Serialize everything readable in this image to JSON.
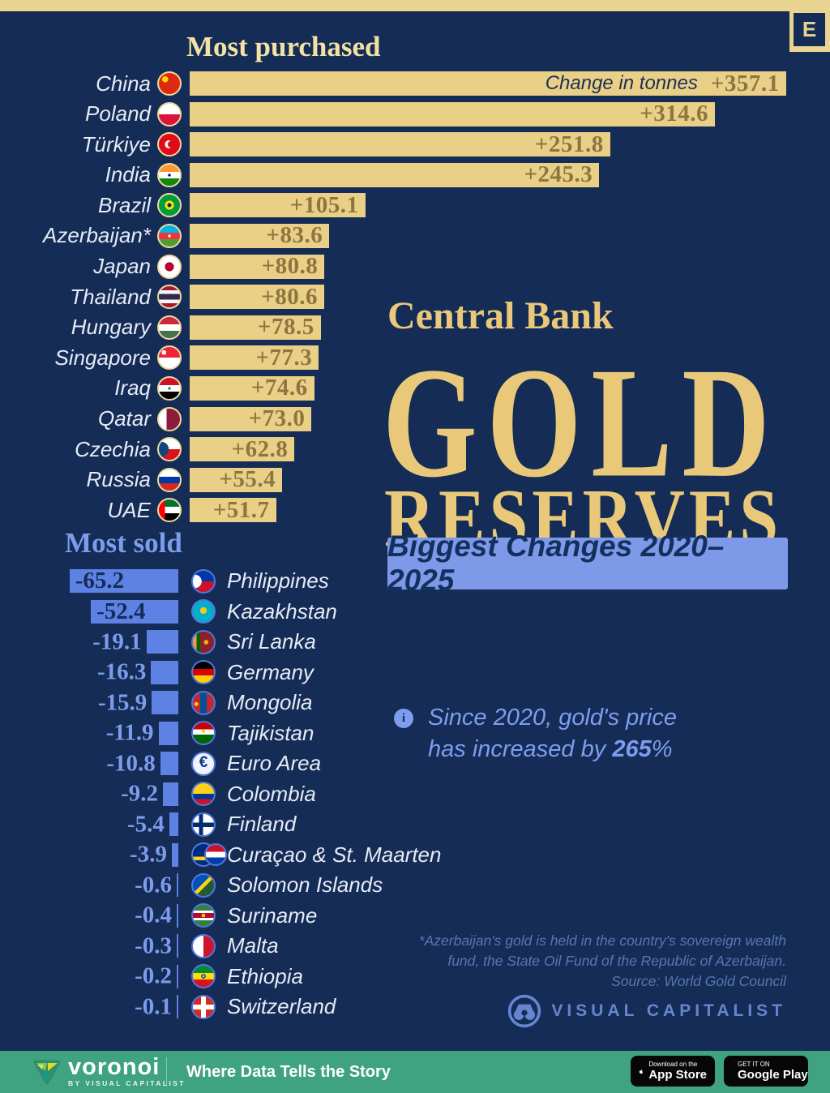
{
  "page": {
    "e_badge": "E",
    "info_icon_glyph": "i"
  },
  "colors": {
    "background": "#142c56",
    "gold_bar": "#e9d086",
    "gold_title": "#e9c979",
    "blue_bar": "#5e82e4",
    "periwinkle_text": "#7d9ceb",
    "badge_bg": "#7e99e8",
    "footer_green": "#3fa381"
  },
  "title_block": {
    "kicker": "Central Bank",
    "line1": "GOLD",
    "line2": "RESERVES",
    "badge": "Biggest Changes 2020–2025"
  },
  "chart_data": [
    {
      "type": "bar",
      "title": "Most purchased",
      "annotation": "Change in tonnes",
      "xlim": [
        0,
        357.1
      ],
      "categories": [
        "China",
        "Poland",
        "Türkiye",
        "India",
        "Brazil",
        "Azerbaijan*",
        "Japan",
        "Thailand",
        "Hungary",
        "Singapore",
        "Iraq",
        "Qatar",
        "Czechia",
        "Russia",
        "UAE"
      ],
      "values": [
        357.1,
        314.6,
        251.8,
        245.3,
        105.1,
        83.6,
        80.8,
        80.6,
        78.5,
        77.3,
        74.6,
        73.0,
        62.8,
        55.4,
        51.7
      ],
      "display_values": [
        "+357.1",
        "+314.6",
        "+251.8",
        "+245.3",
        "+105.1",
        "+83.6",
        "+80.8",
        "+80.6",
        "+78.5",
        "+77.3",
        "+74.6",
        "+73.0",
        "+62.8",
        "+55.4",
        "+51.7"
      ],
      "flags": [
        "china",
        "poland",
        "turkiye",
        "india",
        "brazil",
        "azerbaijan",
        "japan",
        "thailand",
        "hungary",
        "singapore",
        "iraq",
        "qatar",
        "czechia",
        "russia",
        "uae"
      ]
    },
    {
      "type": "bar",
      "title": "Most sold",
      "xlim": [
        -65.2,
        0
      ],
      "categories": [
        "Philippines",
        "Kazakhstan",
        "Sri Lanka",
        "Germany",
        "Mongolia",
        "Tajikistan",
        "Euro Area",
        "Colombia",
        "Finland",
        "Curaçao & St. Maarten",
        "Solomon Islands",
        "Suriname",
        "Malta",
        "Ethiopia",
        "Switzerland"
      ],
      "values": [
        -65.2,
        -52.4,
        -19.1,
        -16.3,
        -15.9,
        -11.9,
        -10.8,
        -9.2,
        -5.4,
        -3.9,
        -0.6,
        -0.4,
        -0.3,
        -0.2,
        -0.1
      ],
      "display_values": [
        "-65.2",
        "-52.4",
        "-19.1",
        "-16.3",
        "-15.9",
        "-11.9",
        "-10.8",
        "-9.2",
        "-5.4",
        "-3.9",
        "-0.6",
        "-0.4",
        "-0.3",
        "-0.2",
        "-0.1"
      ],
      "flags": [
        "philippines",
        "kazakhstan",
        "srilanka",
        "germany",
        "mongolia",
        "tajikistan",
        "euroarea",
        "colombia",
        "finland",
        "curacao",
        "solomon",
        "suriname",
        "malta",
        "ethiopia",
        "switzerland"
      ]
    }
  ],
  "note": {
    "line1": "Since 2020, gold's price",
    "line2_prefix": "has increased by ",
    "line2_bold": "265",
    "line2_suffix": "%"
  },
  "footnote": {
    "line1": "*Azerbaijan's gold is held in the country's sovereign wealth",
    "line2": "fund, the State Oil Fund of the Republic of Azerbaijan.",
    "line3": "Source: World Gold Council"
  },
  "vc_logo": {
    "wordmark": "VISUAL CAPITALIST"
  },
  "footer": {
    "brand": "voronoi",
    "brand_sub": "BY VISUAL CAPITALIST",
    "tagline": "Where Data Tells the Story",
    "appstore_top": "Download on the",
    "appstore_main": "App Store",
    "gplay_top": "GET IT ON",
    "gplay_main": "Google Play"
  }
}
